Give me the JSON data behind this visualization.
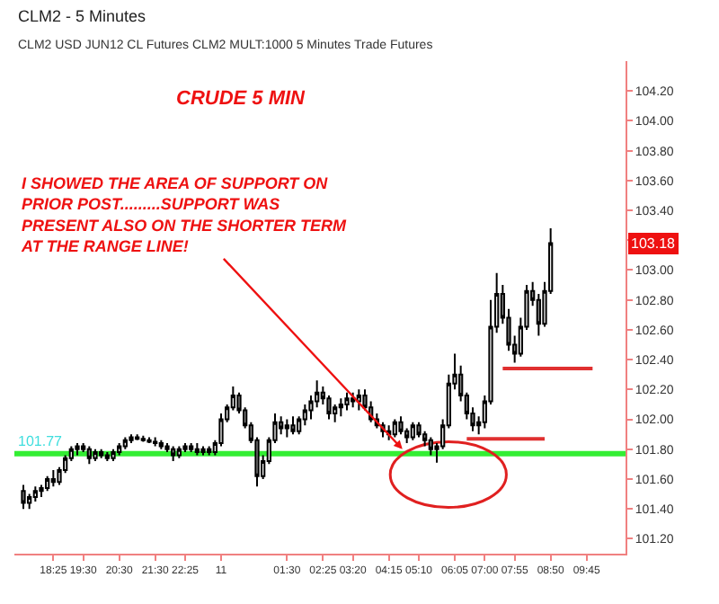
{
  "chart_data": {
    "type": "candlestick",
    "title": "CLM2 - 5 Minutes",
    "subtitle": "CLM2 USD JUN12 CL Futures CLM2 MULT:1000 5 Minutes Trade Futures",
    "color": "#000000",
    "categories": [
      null,
      null,
      null,
      null,
      null,
      "18:25",
      null,
      null,
      null,
      null,
      "19:30",
      null,
      null,
      null,
      null,
      null,
      "20:30",
      null,
      null,
      null,
      null,
      null,
      "21:30",
      null,
      null,
      null,
      null,
      "22:25",
      null,
      null,
      null,
      null,
      null,
      "11",
      null,
      null,
      null,
      null,
      null,
      null,
      null,
      null,
      null,
      null,
      "01:30",
      null,
      null,
      null,
      null,
      null,
      "02:25",
      null,
      null,
      null,
      null,
      "03:20",
      null,
      null,
      null,
      null,
      null,
      "04:15",
      null,
      null,
      null,
      null,
      "05:10",
      null,
      null,
      null,
      null,
      null,
      "06:05",
      null,
      null,
      null,
      null,
      "07:00",
      null,
      null,
      null,
      null,
      "07:55",
      null,
      null,
      null,
      null,
      null,
      "08:50",
      null,
      null,
      null,
      null,
      null,
      "09:45",
      null,
      null,
      null,
      null,
      null,
      null
    ],
    "ohlc": [
      [
        101.52,
        101.56,
        101.4,
        101.44
      ],
      [
        101.44,
        101.5,
        101.4,
        101.48
      ],
      [
        101.48,
        101.55,
        101.45,
        101.52
      ],
      [
        101.52,
        101.56,
        101.48,
        101.54
      ],
      [
        101.54,
        101.62,
        101.52,
        101.6
      ],
      [
        101.6,
        101.66,
        101.55,
        101.58
      ],
      [
        101.58,
        101.68,
        101.56,
        101.66
      ],
      [
        101.66,
        101.76,
        101.64,
        101.74
      ],
      [
        101.74,
        101.82,
        101.72,
        101.8
      ],
      [
        101.8,
        101.84,
        101.76,
        101.82
      ],
      [
        101.82,
        101.84,
        101.78,
        101.8
      ],
      [
        101.8,
        101.82,
        101.7,
        101.74
      ],
      [
        101.74,
        101.8,
        101.72,
        101.78
      ],
      [
        101.78,
        101.8,
        101.74,
        101.76
      ],
      [
        101.76,
        101.78,
        101.72,
        101.74
      ],
      [
        101.74,
        101.8,
        101.72,
        101.78
      ],
      [
        101.78,
        101.84,
        101.76,
        101.82
      ],
      [
        101.82,
        101.88,
        101.8,
        101.86
      ],
      [
        101.86,
        101.9,
        101.84,
        101.88
      ],
      [
        101.88,
        101.9,
        101.86,
        101.87
      ],
      [
        101.87,
        101.89,
        101.85,
        101.86
      ],
      [
        101.86,
        101.88,
        101.84,
        101.85
      ],
      [
        101.85,
        101.88,
        101.82,
        101.84
      ],
      [
        101.84,
        101.86,
        101.8,
        101.82
      ],
      [
        101.82,
        101.84,
        101.78,
        101.8
      ],
      [
        101.8,
        101.82,
        101.72,
        101.76
      ],
      [
        101.76,
        101.82,
        101.74,
        101.8
      ],
      [
        101.8,
        101.84,
        101.78,
        101.82
      ],
      [
        101.82,
        101.84,
        101.78,
        101.8
      ],
      [
        101.8,
        101.84,
        101.76,
        101.78
      ],
      [
        101.78,
        101.82,
        101.76,
        101.8
      ],
      [
        101.8,
        101.82,
        101.76,
        101.78
      ],
      [
        101.78,
        101.86,
        101.76,
        101.84
      ],
      [
        101.84,
        102.04,
        101.82,
        102.0
      ],
      [
        102.0,
        102.1,
        101.98,
        102.08
      ],
      [
        102.08,
        102.22,
        102.06,
        102.16
      ],
      [
        102.16,
        102.18,
        102.04,
        102.06
      ],
      [
        102.06,
        102.08,
        101.94,
        101.96
      ],
      [
        101.96,
        101.98,
        101.84,
        101.86
      ],
      [
        101.86,
        101.88,
        101.55,
        101.62
      ],
      [
        101.62,
        101.76,
        101.6,
        101.72
      ],
      [
        101.72,
        101.88,
        101.7,
        101.86
      ],
      [
        101.86,
        102.04,
        101.84,
        101.98
      ],
      [
        101.98,
        102.02,
        101.9,
        101.94
      ],
      [
        101.94,
        102.0,
        101.88,
        101.96
      ],
      [
        101.96,
        102.02,
        101.9,
        101.92
      ],
      [
        101.92,
        102.02,
        101.9,
        102.0
      ],
      [
        102.0,
        102.1,
        101.96,
        102.06
      ],
      [
        102.06,
        102.16,
        102.0,
        102.12
      ],
      [
        102.12,
        102.26,
        102.08,
        102.18
      ],
      [
        102.18,
        102.22,
        102.1,
        102.14
      ],
      [
        102.14,
        102.16,
        102.0,
        102.04
      ],
      [
        102.04,
        102.1,
        101.98,
        102.08
      ],
      [
        102.08,
        102.14,
        102.02,
        102.1
      ],
      [
        102.1,
        102.18,
        102.06,
        102.14
      ],
      [
        102.14,
        102.18,
        102.08,
        102.12
      ],
      [
        102.12,
        102.2,
        102.06,
        102.16
      ],
      [
        102.16,
        102.2,
        102.06,
        102.08
      ],
      [
        102.08,
        102.12,
        101.98,
        102.0
      ],
      [
        102.0,
        102.04,
        101.94,
        101.96
      ],
      [
        101.96,
        101.98,
        101.88,
        101.92
      ],
      [
        101.92,
        101.96,
        101.86,
        101.9
      ],
      [
        101.9,
        102.0,
        101.88,
        101.98
      ],
      [
        101.98,
        102.02,
        101.9,
        101.92
      ],
      [
        101.92,
        101.94,
        101.84,
        101.88
      ],
      [
        101.88,
        101.98,
        101.86,
        101.96
      ],
      [
        101.96,
        101.98,
        101.88,
        101.9
      ],
      [
        101.9,
        101.92,
        101.82,
        101.86
      ],
      [
        101.86,
        101.88,
        101.76,
        101.8
      ],
      [
        101.8,
        101.84,
        101.71,
        101.82
      ],
      [
        101.82,
        102.0,
        101.8,
        101.96
      ],
      [
        101.96,
        102.3,
        101.94,
        102.24
      ],
      [
        102.24,
        102.44,
        102.2,
        102.3
      ],
      [
        102.3,
        102.36,
        102.12,
        102.16
      ],
      [
        102.16,
        102.18,
        102.0,
        102.04
      ],
      [
        102.04,
        102.08,
        101.92,
        101.96
      ],
      [
        101.96,
        102.02,
        101.9,
        101.98
      ],
      [
        101.98,
        102.16,
        101.94,
        102.12
      ],
      [
        102.12,
        102.8,
        102.1,
        102.62
      ],
      [
        102.62,
        102.98,
        102.58,
        102.84
      ],
      [
        102.84,
        102.9,
        102.64,
        102.68
      ],
      [
        102.68,
        102.74,
        102.46,
        102.5
      ],
      [
        102.5,
        102.56,
        102.38,
        102.44
      ],
      [
        102.44,
        102.68,
        102.42,
        102.62
      ],
      [
        102.62,
        102.9,
        102.6,
        102.86
      ],
      [
        102.86,
        102.92,
        102.76,
        102.8
      ],
      [
        102.8,
        102.84,
        102.56,
        102.64
      ],
      [
        102.64,
        102.92,
        102.62,
        102.86
      ],
      [
        102.86,
        103.28,
        102.84,
        103.18
      ],
      null,
      null,
      null,
      null,
      null,
      null,
      null,
      null,
      null,
      null,
      null,
      null
    ],
    "series": [
      {
        "type": "line",
        "color": "#e03030",
        "values": [
          null,
          null,
          null,
          null,
          null,
          null,
          null,
          null,
          null,
          null,
          null,
          null,
          null,
          null,
          null,
          null,
          null,
          null,
          null,
          null,
          null,
          null,
          null,
          null,
          null,
          null,
          null,
          null,
          null,
          null,
          null,
          null,
          null,
          null,
          null,
          null,
          null,
          null,
          null,
          null,
          null,
          null,
          null,
          null,
          null,
          null,
          null,
          null,
          null,
          null,
          null,
          null,
          null,
          null,
          null,
          null,
          null,
          null,
          null,
          null,
          null,
          null,
          null,
          null,
          null,
          null,
          null,
          null,
          null,
          null,
          null,
          null,
          null,
          null,
          null,
          null,
          null,
          null,
          null,
          null,
          102.34,
          102.34,
          102.34,
          102.34,
          102.34,
          102.34,
          102.34,
          102.34,
          102.34,
          102.34,
          102.34,
          102.34,
          102.34,
          102.34,
          102.34,
          102.34,
          null,
          null,
          null,
          null,
          null
        ]
      },
      {
        "type": "line",
        "color": "#e03030",
        "values": [
          null,
          null,
          null,
          null,
          null,
          null,
          null,
          null,
          null,
          null,
          null,
          null,
          null,
          null,
          null,
          null,
          null,
          null,
          null,
          null,
          null,
          null,
          null,
          null,
          null,
          null,
          null,
          null,
          null,
          null,
          null,
          null,
          null,
          null,
          null,
          null,
          null,
          null,
          null,
          null,
          null,
          null,
          null,
          null,
          null,
          null,
          null,
          null,
          null,
          null,
          null,
          null,
          null,
          null,
          null,
          null,
          null,
          null,
          null,
          null,
          null,
          null,
          null,
          null,
          null,
          null,
          null,
          null,
          null,
          null,
          null,
          null,
          null,
          null,
          101.87,
          101.87,
          101.87,
          101.87,
          101.87,
          101.87,
          101.87,
          101.87,
          101.87,
          101.87,
          101.87,
          101.87,
          101.87,
          101.87,
          null,
          null,
          null,
          null,
          null,
          null,
          null,
          null,
          null,
          null,
          null,
          null,
          null
        ]
      }
    ],
    "ref_lines": [
      {
        "axis": "y",
        "value": 101.77,
        "label": "101.77",
        "color": "#33ee33"
      }
    ],
    "annotations": [
      "CRUDE 5 MIN",
      "I SHOWED THE AREA OF SUPPORT ON PRIOR POST.........SUPPORT WAS PRESENT ALSO ON THE SHORTER TERM AT THE RANGE LINE!",
      {
        "text": "103.18",
        "y": 103.18
      }
    ],
    "ylim": [
      101.1,
      104.4
    ],
    "yticks": [
      {
        "value": 101.2,
        "label": "101.20"
      },
      {
        "value": 101.4,
        "label": "101.40"
      },
      {
        "value": 101.6,
        "label": "101.60"
      },
      {
        "value": 101.8,
        "label": "101.80"
      },
      {
        "value": 102.0,
        "label": "102.00"
      },
      {
        "value": 102.2,
        "label": "102.20"
      },
      {
        "value": 102.4,
        "label": "102.40"
      },
      {
        "value": 102.6,
        "label": "102.60"
      },
      {
        "value": 102.8,
        "label": "102.80"
      },
      {
        "value": 103.0,
        "label": "103.00"
      },
      {
        "value": 103.2,
        "label": null
      },
      {
        "value": 103.4,
        "label": "103.40"
      },
      {
        "value": 103.6,
        "label": "103.60"
      },
      {
        "value": 103.8,
        "label": "103.80"
      },
      {
        "value": 104.0,
        "label": "104.00"
      },
      {
        "value": 104.2,
        "label": "104.20"
      }
    ]
  }
}
